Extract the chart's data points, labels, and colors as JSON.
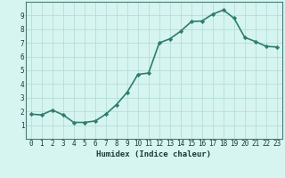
{
  "x": [
    0,
    1,
    2,
    3,
    4,
    5,
    6,
    7,
    8,
    9,
    10,
    11,
    12,
    13,
    14,
    15,
    16,
    17,
    18,
    19,
    20,
    21,
    22,
    23
  ],
  "y": [
    1.8,
    1.75,
    2.1,
    1.75,
    1.2,
    1.2,
    1.3,
    1.8,
    2.5,
    3.4,
    4.7,
    4.8,
    7.0,
    7.3,
    7.85,
    8.55,
    8.6,
    9.1,
    9.4,
    8.8,
    7.4,
    7.1,
    6.75,
    6.7
  ],
  "line_color": "#2e7d6e",
  "marker": "D",
  "marker_size": 2.2,
  "bg_color": "#d6f5f0",
  "grid_color": "#b5deda",
  "xlabel": "Humidex (Indice chaleur)",
  "xlim": [
    -0.5,
    23.5
  ],
  "ylim": [
    0,
    10
  ],
  "yticks": [
    1,
    2,
    3,
    4,
    5,
    6,
    7,
    8,
    9
  ],
  "xticks": [
    0,
    1,
    2,
    3,
    4,
    5,
    6,
    7,
    8,
    9,
    10,
    11,
    12,
    13,
    14,
    15,
    16,
    17,
    18,
    19,
    20,
    21,
    22,
    23
  ],
  "xlabel_fontsize": 6.5,
  "tick_fontsize": 5.5,
  "line_width": 1.2,
  "tick_color": "#2e5c5a",
  "label_color": "#1a3a3a"
}
